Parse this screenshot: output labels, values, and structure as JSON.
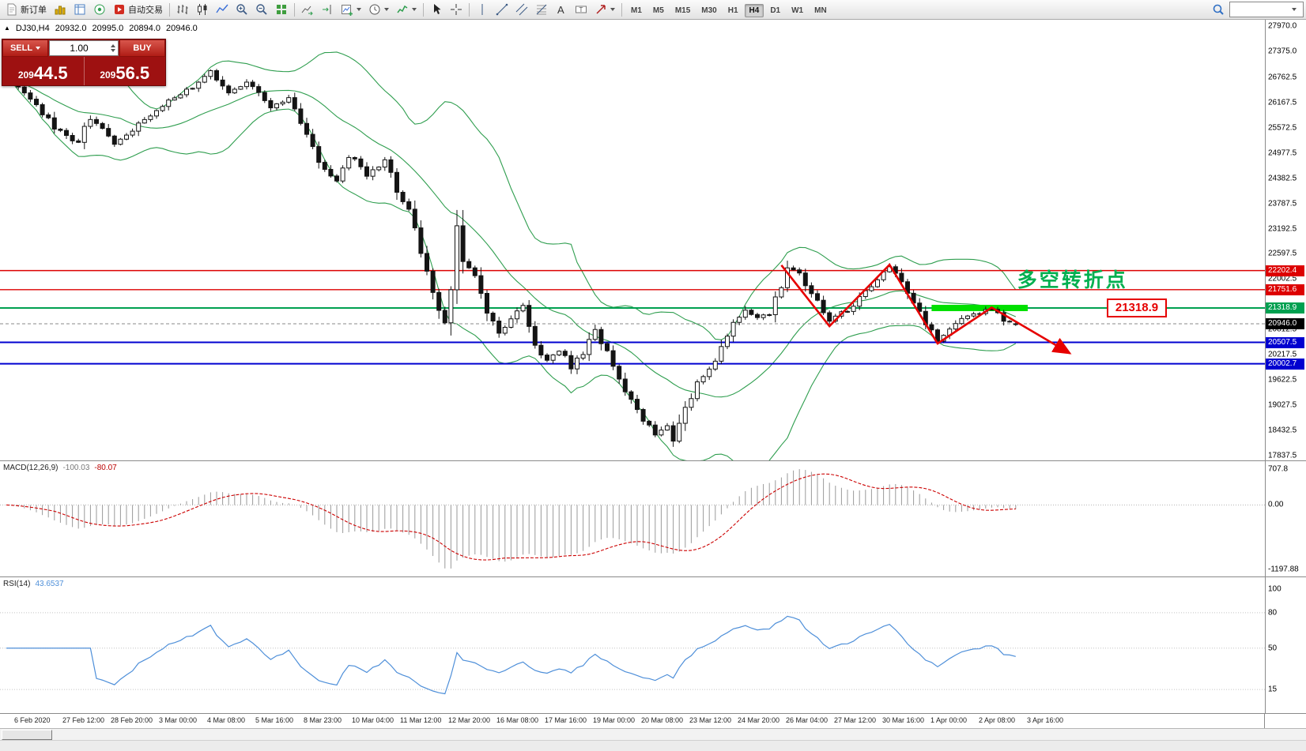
{
  "toolbar": {
    "new_order_label": "新订单",
    "autotrading_label": "自动交易",
    "timeframe_buttons": [
      "M1",
      "M5",
      "M15",
      "M30",
      "H1",
      "H4",
      "D1",
      "W1",
      "MN"
    ],
    "active_timeframe": "H4",
    "search_value": ""
  },
  "symbol_header": {
    "direction": "▲",
    "symbol": "DJ30,H4",
    "open": "20932.0",
    "high": "20995.0",
    "low": "20894.0",
    "close": "20946.0"
  },
  "trade_panel": {
    "sell_label": "SELL",
    "buy_label": "BUY",
    "volume": "1.00",
    "sell_price": {
      "base": "209",
      "big": "44.5"
    },
    "buy_price": {
      "base": "209",
      "big": "56.5"
    }
  },
  "chart_data": {
    "type": "candlestick",
    "symbol": "DJ30",
    "timeframe": "H4",
    "price_range": [
      17720,
      28125
    ],
    "price_ticks": [
      "27970.0",
      "27375.0",
      "26762.5",
      "26167.5",
      "25572.5",
      "24977.5",
      "24382.5",
      "23787.5",
      "23192.5",
      "22597.5",
      "22002.5",
      "20812.5",
      "20217.5",
      "19622.5",
      "19027.5",
      "18432.5",
      "17837.5"
    ],
    "candle_count": 169,
    "close_anchors": [
      [
        0,
        26850
      ],
      [
        4,
        26250
      ],
      [
        8,
        25600
      ],
      [
        12,
        25200
      ],
      [
        14,
        25850
      ],
      [
        18,
        25200
      ],
      [
        21,
        25500
      ],
      [
        24,
        25900
      ],
      [
        27,
        26200
      ],
      [
        31,
        26550
      ],
      [
        34,
        26950
      ],
      [
        37,
        26350
      ],
      [
        40,
        26650
      ],
      [
        44,
        26050
      ],
      [
        47,
        26250
      ],
      [
        50,
        25500
      ],
      [
        52,
        24700
      ],
      [
        55,
        24350
      ],
      [
        57,
        24950
      ],
      [
        60,
        24450
      ],
      [
        63,
        24800
      ],
      [
        65,
        24100
      ],
      [
        67,
        23650
      ],
      [
        69,
        22700
      ],
      [
        71,
        21600
      ],
      [
        73,
        21050
      ],
      [
        74,
        21900
      ],
      [
        75,
        23000
      ],
      [
        76,
        22400
      ],
      [
        78,
        22050
      ],
      [
        80,
        21300
      ],
      [
        82,
        20750
      ],
      [
        84,
        21100
      ],
      [
        86,
        21350
      ],
      [
        88,
        20400
      ],
      [
        90,
        20050
      ],
      [
        92,
        20350
      ],
      [
        94,
        19900
      ],
      [
        96,
        20250
      ],
      [
        98,
        20750
      ],
      [
        100,
        20300
      ],
      [
        102,
        19600
      ],
      [
        104,
        19150
      ],
      [
        106,
        18700
      ],
      [
        108,
        18350
      ],
      [
        110,
        18500
      ],
      [
        111,
        18250
      ],
      [
        113,
        19000
      ],
      [
        115,
        19500
      ],
      [
        117,
        19850
      ],
      [
        119,
        20400
      ],
      [
        121,
        20900
      ],
      [
        123,
        21250
      ],
      [
        125,
        21050
      ],
      [
        127,
        21200
      ],
      [
        129,
        21850
      ],
      [
        130,
        22300
      ],
      [
        132,
        22100
      ],
      [
        134,
        21700
      ],
      [
        136,
        21150
      ],
      [
        137,
        20950
      ],
      [
        139,
        21200
      ],
      [
        141,
        21350
      ],
      [
        143,
        21700
      ],
      [
        145,
        22000
      ],
      [
        147,
        22250
      ],
      [
        149,
        21950
      ],
      [
        151,
        21500
      ],
      [
        153,
        20950
      ],
      [
        155,
        20600
      ],
      [
        157,
        20850
      ],
      [
        159,
        21050
      ],
      [
        161,
        21150
      ],
      [
        163,
        21250
      ],
      [
        164,
        21300
      ],
      [
        166,
        21050
      ],
      [
        168,
        20946
      ]
    ],
    "last_candle_ohlc": [
      20932.0,
      20995.0,
      20894.0,
      20946.0
    ],
    "candle_colors": {
      "up_fill": "#ffffff",
      "down_fill": "#141414",
      "outline": "#141414"
    },
    "bollinger": {
      "period": 20,
      "deviation": 2,
      "color": "#2f9e4f"
    },
    "horizontal_lines": [
      {
        "price": 22202.4,
        "color": "#dd0000",
        "width": 1.4,
        "label": "22202.4"
      },
      {
        "price": 21751.6,
        "color": "#dd0000",
        "width": 1.4,
        "label": "21751.6"
      },
      {
        "price": 21318.9,
        "color": "#00a050",
        "width": 2,
        "label": "21318.9"
      },
      {
        "price": 20507.5,
        "color": "#0000d0",
        "width": 2,
        "label": "20507.5"
      },
      {
        "price": 20002.7,
        "color": "#0000d0",
        "width": 2,
        "label": "20002.7"
      }
    ],
    "current_price": {
      "value": "20946.0",
      "price": 20946.0,
      "label_bg": "#000000"
    },
    "annotations": {
      "zigzag": {
        "color": "#e60000",
        "points": [
          [
            129,
            22330
          ],
          [
            137,
            20890
          ],
          [
            147,
            22340
          ],
          [
            155,
            20480
          ],
          [
            164,
            21330
          ],
          [
            177,
            20250
          ]
        ]
      },
      "green_band": {
        "price": 21318.9,
        "from_index": 154,
        "to_index": 170,
        "color": "#00e000"
      },
      "turning_point_text": {
        "text": "多空转折点",
        "color": "#00b050"
      },
      "price_callout": {
        "text": "21318.9",
        "color": "#e60000"
      }
    },
    "macd": {
      "name": "MACD(12,26,9)",
      "value_main": "-100.03",
      "value_signal": "-80.07",
      "fast": 12,
      "slow": 26,
      "signal": 9,
      "ticks": [
        "707.8",
        "0.00",
        "-1197.88"
      ],
      "histogram_color": "#9a9a9a",
      "signal_color": "#cc0000"
    },
    "rsi": {
      "name": "RSI(14)",
      "value": "43.6537",
      "period": 14,
      "levels": [
        "100",
        "80",
        "50",
        "15"
      ],
      "line_color": "#4e8fd9",
      "range": [
        -5,
        110
      ]
    },
    "time_labels": [
      "6 Feb 2020",
      "27 Feb 12:00",
      "28 Feb 20:00",
      "3 Mar 00:00",
      "4 Mar 08:00",
      "5 Mar 16:00",
      "8 Mar 23:00",
      "10 Mar 04:00",
      "11 Mar 12:00",
      "12 Mar 20:00",
      "16 Mar 08:00",
      "17 Mar 16:00",
      "19 Mar 00:00",
      "20 Mar 08:00",
      "23 Mar 12:00",
      "24 Mar 20:00",
      "26 Mar 04:00",
      "27 Mar 12:00",
      "30 Mar 16:00",
      "1 Apr 00:00",
      "2 Apr 08:00",
      "3 Apr 16:00"
    ]
  }
}
